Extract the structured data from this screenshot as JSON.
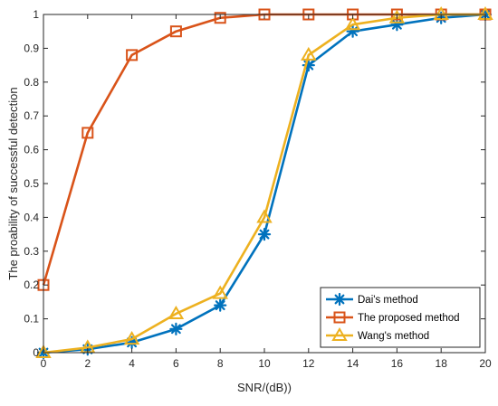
{
  "chart_data": {
    "type": "line",
    "xlabel": "SNR/(dB))",
    "ylabel": "The proability of successful detection",
    "xlim": [
      0,
      20
    ],
    "ylim": [
      0,
      1
    ],
    "x": [
      0,
      2,
      4,
      6,
      8,
      10,
      12,
      14,
      16,
      18,
      20
    ],
    "xticks": [
      "0",
      "2",
      "4",
      "6",
      "8",
      "10",
      "12",
      "14",
      "16",
      "18",
      "20"
    ],
    "yticks": [
      "0",
      "0.1",
      "0.2",
      "0.3",
      "0.4",
      "0.5",
      "0.6",
      "0.7",
      "0.8",
      "0.9",
      "1"
    ],
    "grid": false,
    "legend_position": "bottom-right",
    "series": [
      {
        "name": "Dai's method",
        "color": "#0072BD",
        "marker": "asterisk",
        "values": [
          0,
          0.01,
          0.03,
          0.07,
          0.14,
          0.35,
          0.85,
          0.95,
          0.97,
          0.99,
          1.0
        ]
      },
      {
        "name": "The proposed method",
        "color": "#D95319",
        "marker": "square",
        "values": [
          0.2,
          0.65,
          0.88,
          0.95,
          0.99,
          1.0,
          1.0,
          1.0,
          1.0,
          1.0,
          1.0
        ]
      },
      {
        "name": "Wang's method",
        "color": "#EDB120",
        "marker": "triangle",
        "values": [
          0,
          0.015,
          0.04,
          0.115,
          0.175,
          0.4,
          0.88,
          0.97,
          0.99,
          1.0,
          1.0
        ]
      }
    ]
  }
}
